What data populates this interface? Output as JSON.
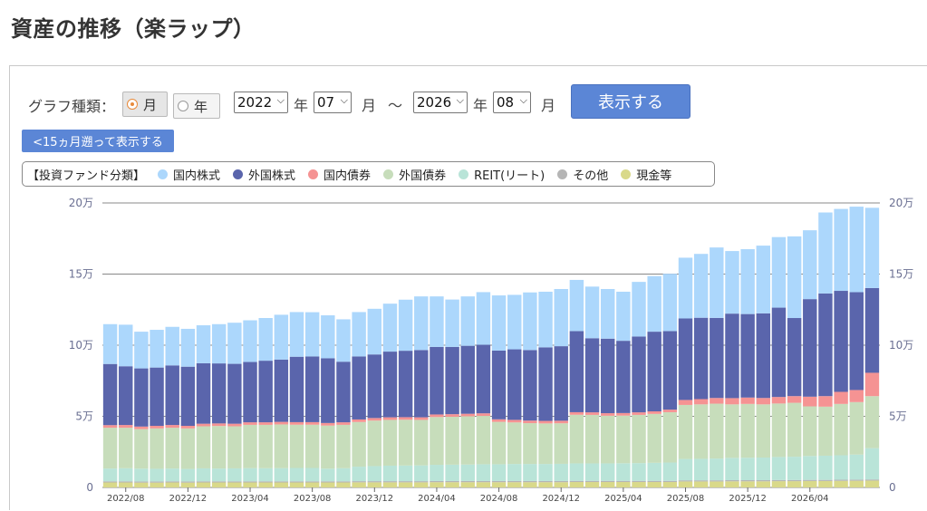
{
  "page_title": "資産の推移（楽ラップ）",
  "controls": {
    "graph_type_label": "グラフ種類：",
    "radio_month": "月",
    "radio_year": "年",
    "selected": "月",
    "start_year": "2022",
    "start_month": "07",
    "end_year": "2026",
    "end_month": "08",
    "year_unit": "年",
    "month_unit": "月",
    "range_sep": "～",
    "show_button": "表示する",
    "back_button": "<15ヵ月遡って表示する"
  },
  "chart_data": {
    "type": "bar",
    "stacked": true,
    "legend_title": "【投資ファンド分類】",
    "categories": [
      "2022/07",
      "2022/08",
      "2022/09",
      "2022/10",
      "2022/11",
      "2022/12",
      "2023/01",
      "2023/02",
      "2023/03",
      "2023/04",
      "2023/05",
      "2023/06",
      "2023/07",
      "2023/08",
      "2023/09",
      "2023/10",
      "2023/11",
      "2023/12",
      "2024/01",
      "2024/02",
      "2024/03",
      "2024/04",
      "2024/05",
      "2024/06",
      "2024/07",
      "2024/08",
      "2024/09",
      "2024/10",
      "2024/11",
      "2024/12",
      "2025/01",
      "2025/02",
      "2025/03",
      "2025/04",
      "2025/05",
      "2025/06",
      "2025/07",
      "2025/08",
      "2025/09",
      "2025/10",
      "2025/11",
      "2025/12",
      "2026/01",
      "2026/02",
      "2026/03",
      "2026/04",
      "2026/05",
      "2026/06",
      "2026/07",
      "2026/08"
    ],
    "x_tick_labels": [
      "2022/08",
      "2022/12",
      "2023/04",
      "2023/08",
      "2023/12",
      "2024/04",
      "2024/08",
      "2024/12",
      "2025/04",
      "2025/08",
      "2025/12",
      "2026/04"
    ],
    "y_ticks": [
      "0",
      "5万",
      "10万",
      "15万",
      "20万"
    ],
    "ylim": [
      0,
      200000
    ],
    "series": [
      {
        "name": "現金等",
        "color": "#d9d98a",
        "values": [
          3500,
          3500,
          3400,
          3400,
          3500,
          3400,
          3500,
          3500,
          3500,
          3500,
          3500,
          3500,
          3500,
          3500,
          3500,
          3500,
          3600,
          3600,
          3600,
          3600,
          3600,
          3700,
          3700,
          3700,
          3700,
          3700,
          3700,
          3700,
          3700,
          3700,
          3800,
          3800,
          3800,
          3800,
          3800,
          3800,
          3800,
          4200,
          4200,
          4200,
          4300,
          4300,
          4300,
          4400,
          4400,
          4500,
          4500,
          4600,
          4700,
          4800
        ]
      },
      {
        "name": "その他",
        "color": "#b5b5b5",
        "values": [
          800,
          800,
          800,
          800,
          800,
          800,
          800,
          800,
          800,
          800,
          800,
          800,
          800,
          800,
          800,
          800,
          800,
          800,
          800,
          800,
          800,
          800,
          800,
          800,
          800,
          800,
          800,
          800,
          800,
          800,
          800,
          800,
          800,
          800,
          800,
          800,
          800,
          800,
          800,
          800,
          800,
          800,
          800,
          800,
          800,
          800,
          800,
          800,
          800,
          800
        ]
      },
      {
        "name": "REIT(リート)",
        "color": "#b9e4d8",
        "values": [
          9000,
          9200,
          9000,
          8900,
          9000,
          8800,
          9100,
          9000,
          9100,
          9300,
          9200,
          9300,
          9400,
          9400,
          8900,
          9200,
          10200,
          10600,
          10900,
          11000,
          11100,
          11400,
          11500,
          11600,
          11800,
          11800,
          12000,
          12000,
          12000,
          12100,
          12300,
          12300,
          12300,
          12400,
          12500,
          12700,
          12900,
          15000,
          15100,
          15300,
          15700,
          15800,
          15900,
          16200,
          16400,
          16800,
          17000,
          17200,
          17600,
          22000
        ]
      },
      {
        "name": "外国債券",
        "color": "#c7ddbb",
        "values": [
          28700,
          28500,
          27800,
          28400,
          28700,
          28500,
          29600,
          29900,
          29600,
          30400,
          30500,
          30700,
          30400,
          30400,
          30300,
          30500,
          31400,
          32000,
          32200,
          32200,
          32000,
          33600,
          33700,
          33900,
          34000,
          29800,
          29200,
          28700,
          28500,
          28500,
          34200,
          34100,
          33500,
          33500,
          33900,
          34400,
          35400,
          38000,
          38300,
          38600,
          37600,
          37800,
          37400,
          37600,
          37900,
          34900,
          34500,
          36100,
          36900,
          36600
        ]
      },
      {
        "name": "国内債券",
        "color": "#f59393",
        "values": [
          1800,
          1900,
          1800,
          1800,
          1900,
          1800,
          1800,
          1800,
          1800,
          1800,
          1800,
          1800,
          1800,
          1800,
          1800,
          1800,
          1800,
          1800,
          1800,
          1800,
          1800,
          1800,
          1800,
          1800,
          1800,
          1800,
          1800,
          1800,
          1800,
          1800,
          1800,
          1800,
          1800,
          1800,
          1800,
          1800,
          1800,
          3500,
          3700,
          4000,
          4400,
          4500,
          4500,
          4600,
          4700,
          6800,
          7400,
          8500,
          8500,
          16400
        ]
      },
      {
        "name": "外国株式",
        "color": "#5a65ac",
        "values": [
          43000,
          41300,
          40900,
          41000,
          41900,
          41600,
          42500,
          42200,
          42100,
          42400,
          43300,
          43800,
          46000,
          46200,
          45500,
          42600,
          44300,
          44700,
          46200,
          46700,
          47300,
          47500,
          47300,
          47800,
          48200,
          48300,
          49600,
          49600,
          51700,
          52400,
          57000,
          52100,
          52400,
          50800,
          53300,
          56000,
          55200,
          57300,
          57200,
          56300,
          59400,
          58700,
          59500,
          62800,
          54900,
          68600,
          72200,
          71000,
          68800,
          59600
        ]
      },
      {
        "name": "国内株式",
        "color": "#acd7fc",
        "values": [
          28000,
          29200,
          25800,
          26500,
          27100,
          26600,
          26700,
          27600,
          28900,
          29300,
          30000,
          31500,
          31400,
          31100,
          30200,
          29800,
          31200,
          32100,
          33700,
          35900,
          37700,
          35500,
          33300,
          34700,
          37000,
          38800,
          38300,
          40500,
          39100,
          40200,
          36000,
          36300,
          34900,
          34500,
          38400,
          39100,
          40300,
          42700,
          44900,
          49500,
          44000,
          45600,
          47600,
          49600,
          57400,
          48400,
          56900,
          57600,
          60100,
          56400
        ]
      }
    ]
  }
}
